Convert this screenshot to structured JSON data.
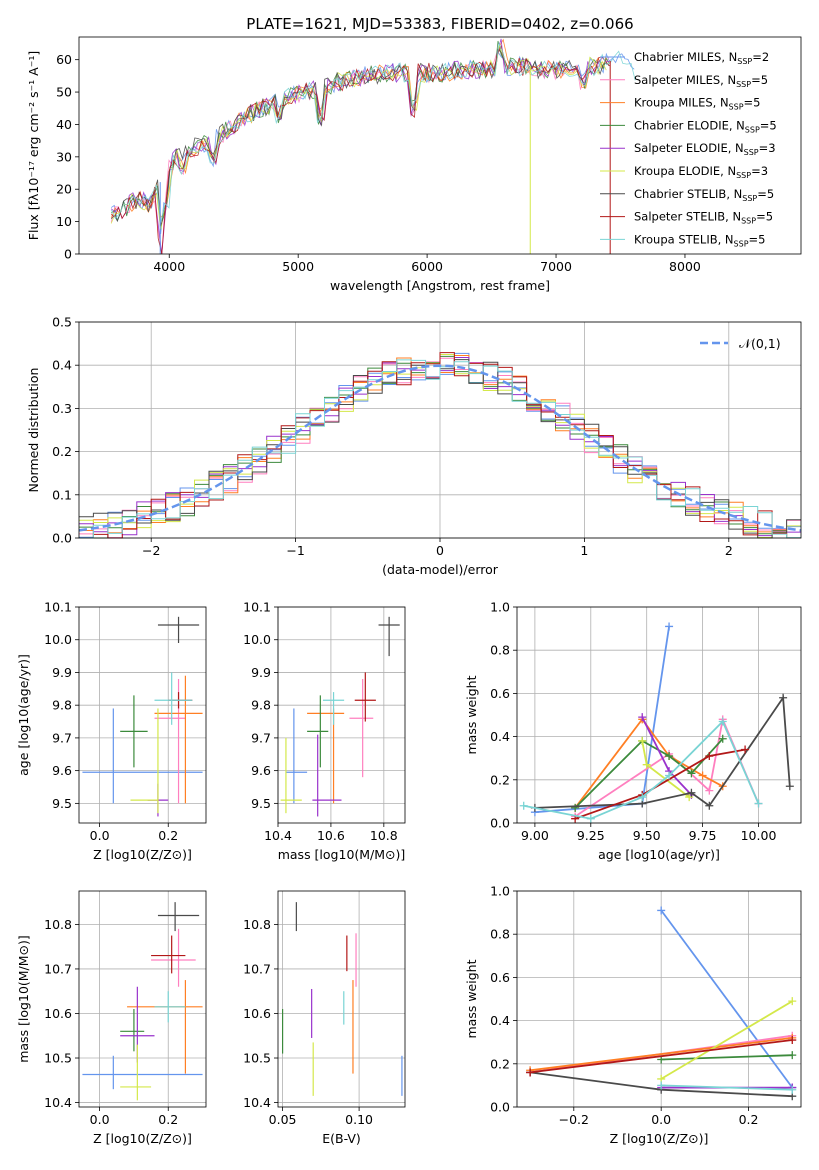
{
  "title": "PLATE=1621, MJD=53383, FIBERID=0402, z=0.066",
  "colors": [
    "#6495ed",
    "#ff7fbf",
    "#ff7f24",
    "#3c8a3c",
    "#9932cc",
    "#d4e84a",
    "#4a4a4a",
    "#b21818",
    "#79d4d4"
  ],
  "chart_data": [
    {
      "type": "line",
      "title": "PLATE=1621, MJD=53383, FIBERID=0402, z=0.066",
      "xlabel": "wavelength [Angstrom, rest frame]",
      "ylabel": "Flux [fλ10⁻¹⁷ erg cm⁻² s⁻¹ A⁻¹]",
      "xlim": [
        3300,
        8900
      ],
      "ylim": [
        0,
        67
      ],
      "xticks": [
        4000,
        5000,
        6000,
        7000,
        8000
      ],
      "yticks": [
        0,
        10,
        20,
        30,
        40,
        50,
        60
      ],
      "legend": "right",
      "series": [
        {
          "name": "Chabrier MILES, N$_{SSP}$=2"
        },
        {
          "name": "Salpeter MILES, N$_{SSP}$=5"
        },
        {
          "name": "Kroupa MILES, N$_{SSP}$=5"
        },
        {
          "name": "Chabrier ELODIE, N$_{SSP}$=5"
        },
        {
          "name": "Salpeter ELODIE, N$_{SSP}$=3"
        },
        {
          "name": "Kroupa ELODIE, N$_{SSP}$=3"
        },
        {
          "name": "Chabrier STELIB, N$_{SSP}$=5"
        },
        {
          "name": "Salpeter STELIB, N$_{SSP}$=5"
        },
        {
          "name": "Kroupa STELIB, N$_{SSP}$=5"
        }
      ],
      "spectrum_shape": [
        [
          3550,
          12
        ],
        [
          3650,
          14
        ],
        [
          3750,
          17
        ],
        [
          3850,
          15
        ],
        [
          3950,
          24
        ],
        [
          4050,
          30
        ],
        [
          4200,
          33
        ],
        [
          4350,
          35
        ],
        [
          4500,
          40
        ],
        [
          4700,
          45
        ],
        [
          4900,
          48
        ],
        [
          5050,
          50
        ],
        [
          5150,
          51
        ],
        [
          5300,
          53
        ],
        [
          5500,
          55
        ],
        [
          5700,
          56
        ],
        [
          5900,
          56
        ],
        [
          6100,
          56
        ],
        [
          6300,
          57
        ],
        [
          6500,
          57
        ],
        [
          6600,
          58
        ],
        [
          6700,
          58
        ],
        [
          6900,
          57
        ],
        [
          7100,
          57
        ],
        [
          7300,
          58
        ],
        [
          7450,
          60
        ],
        [
          7600,
          61
        ]
      ]
    },
    {
      "type": "line",
      "xlabel": "(data-model)/error",
      "ylabel": "Normed distribution",
      "xlim": [
        -2.5,
        2.5
      ],
      "ylim": [
        0,
        0.5
      ],
      "xticks": [
        -2,
        -1,
        0,
        1,
        2
      ],
      "yticks": [
        0.0,
        0.1,
        0.2,
        0.3,
        0.4,
        0.5
      ],
      "legend_label": "𝒩(0,1)",
      "gaussian": {
        "mu": 0,
        "sigma": 1
      },
      "histogram_bin_width": 0.1
    },
    {
      "type": "scatter",
      "xlabel": "Z [log10(Z/Z⊙)]",
      "ylabel": "age  [log10(age/yr)]",
      "xlim": [
        -0.06,
        0.31
      ],
      "ylim": [
        9.44,
        10.1
      ],
      "xticks": [
        0.0,
        0.2
      ],
      "yticks": [
        9.5,
        9.6,
        9.7,
        9.8,
        9.9,
        10.0,
        10.1
      ],
      "points": [
        {
          "x": 0.04,
          "y": 9.595,
          "xlo": -0.05,
          "xhi": 0.3,
          "ylo": 9.5,
          "yhi": 9.79
        },
        {
          "x": 0.23,
          "y": 9.76,
          "xlo": 0.16,
          "xhi": 0.25,
          "ylo": 9.5,
          "yhi": 9.88
        },
        {
          "x": 0.25,
          "y": 9.775,
          "xlo": 0.16,
          "xhi": 0.3,
          "ylo": 9.5,
          "yhi": 9.89
        },
        {
          "x": 0.1,
          "y": 9.72,
          "xlo": 0.06,
          "xhi": 0.14,
          "ylo": 9.61,
          "yhi": 9.83
        },
        {
          "x": 0.17,
          "y": 9.51,
          "xlo": 0.14,
          "xhi": 0.2,
          "ylo": 9.46,
          "yhi": 9.56
        },
        {
          "x": 0.17,
          "y": 9.51,
          "xlo": 0.09,
          "xhi": 0.17,
          "ylo": 9.47,
          "yhi": 9.79
        },
        {
          "x": 0.23,
          "y": 10.045,
          "xlo": 0.17,
          "xhi": 0.29,
          "ylo": 9.99,
          "yhi": 10.07
        },
        {
          "x": 0.23,
          "y": 9.815,
          "xlo": 0.2,
          "xhi": 0.27,
          "ylo": 9.79,
          "yhi": 9.84
        },
        {
          "x": 0.21,
          "y": 9.815,
          "xlo": 0.16,
          "xhi": 0.27,
          "ylo": 9.74,
          "yhi": 9.9
        }
      ]
    },
    {
      "type": "scatter",
      "xlabel": "mass [log10(M/M⊙)]",
      "xlim": [
        10.4,
        10.88
      ],
      "ylim": [
        9.44,
        10.1
      ],
      "xticks": [
        10.4,
        10.6,
        10.8
      ],
      "yticks": [
        9.5,
        9.6,
        9.7,
        9.8,
        9.9,
        10.0,
        10.1
      ],
      "points": [
        {
          "x": 10.46,
          "y": 9.595,
          "xlo": 10.43,
          "xhi": 10.51,
          "ylo": 9.5,
          "yhi": 9.79
        },
        {
          "x": 10.72,
          "y": 9.76,
          "xlo": 10.67,
          "xhi": 10.76,
          "ylo": 9.58,
          "yhi": 9.88
        },
        {
          "x": 10.61,
          "y": 9.775,
          "xlo": 10.51,
          "xhi": 10.65,
          "ylo": 9.5,
          "yhi": 9.79
        },
        {
          "x": 10.56,
          "y": 9.72,
          "xlo": 10.51,
          "xhi": 10.59,
          "ylo": 9.61,
          "yhi": 9.83
        },
        {
          "x": 10.55,
          "y": 9.51,
          "xlo": 10.53,
          "xhi": 10.64,
          "ylo": 9.46,
          "yhi": 9.71
        },
        {
          "x": 10.43,
          "y": 9.51,
          "xlo": 10.41,
          "xhi": 10.49,
          "ylo": 9.47,
          "yhi": 9.7
        },
        {
          "x": 10.82,
          "y": 10.045,
          "xlo": 10.78,
          "xhi": 10.86,
          "ylo": 9.95,
          "yhi": 10.07
        },
        {
          "x": 10.73,
          "y": 9.815,
          "xlo": 10.69,
          "xhi": 10.77,
          "ylo": 9.75,
          "yhi": 9.9
        },
        {
          "x": 10.61,
          "y": 9.815,
          "xlo": 10.57,
          "xhi": 10.65,
          "ylo": 9.74,
          "yhi": 9.84
        }
      ]
    },
    {
      "type": "line",
      "xlabel": "age  [log10(age/yr)]",
      "ylabel": "mass weight",
      "xlim": [
        8.92,
        10.19
      ],
      "ylim": [
        0.0,
        1.0
      ],
      "xticks": [
        9.0,
        9.25,
        9.5,
        9.75,
        10.0
      ],
      "yticks": [
        0.0,
        0.2,
        0.4,
        0.6,
        0.8,
        1.0
      ],
      "series": [
        {
          "x": [
            9.0,
            9.48,
            9.6
          ],
          "y": [
            0.05,
            0.09,
            0.91
          ]
        },
        {
          "x": [
            9.18,
            9.6,
            9.78,
            9.84,
            10.0
          ],
          "y": [
            0.03,
            0.32,
            0.15,
            0.48,
            0.09
          ]
        },
        {
          "x": [
            9.18,
            9.48,
            9.6,
            9.75,
            9.84
          ],
          "y": [
            0.07,
            0.48,
            0.31,
            0.22,
            0.17
          ]
        },
        {
          "x": [
            9.18,
            9.48,
            9.6,
            9.7,
            9.84
          ],
          "y": [
            0.07,
            0.38,
            0.31,
            0.23,
            0.39
          ]
        },
        {
          "x": [
            9.48,
            9.6,
            9.7
          ],
          "y": [
            0.49,
            0.24,
            0.13
          ]
        },
        {
          "x": [
            9.48,
            9.5,
            9.69
          ],
          "y": [
            0.38,
            0.27,
            0.12
          ]
        },
        {
          "x": [
            9.0,
            9.48,
            9.7,
            9.78,
            10.11,
            10.14
          ],
          "y": [
            0.07,
            0.09,
            0.14,
            0.08,
            0.58,
            0.17
          ]
        },
        {
          "x": [
            9.18,
            9.48,
            9.78,
            9.94
          ],
          "y": [
            0.02,
            0.13,
            0.31,
            0.34
          ]
        },
        {
          "x": [
            8.95,
            9.25,
            9.48,
            9.6,
            9.84,
            10.0
          ],
          "y": [
            0.08,
            0.02,
            0.12,
            0.22,
            0.47,
            0.09
          ]
        }
      ]
    },
    {
      "type": "scatter",
      "xlabel": "Z [log10(Z/Z⊙)]",
      "ylabel": "mass [log10(M/M⊙)]",
      "xlim": [
        -0.06,
        0.31
      ],
      "ylim": [
        10.39,
        10.875
      ],
      "xticks": [
        0.0,
        0.2
      ],
      "yticks": [
        10.4,
        10.5,
        10.6,
        10.7,
        10.8
      ],
      "points": [
        {
          "x": 0.04,
          "y": 10.463,
          "xlo": -0.05,
          "xhi": 0.3,
          "ylo": 10.43,
          "yhi": 10.505
        },
        {
          "x": 0.23,
          "y": 10.72,
          "xlo": 0.15,
          "xhi": 0.28,
          "ylo": 10.66,
          "yhi": 10.79
        },
        {
          "x": 0.25,
          "y": 10.615,
          "xlo": 0.08,
          "xhi": 0.3,
          "ylo": 10.465,
          "yhi": 10.675
        },
        {
          "x": 0.1,
          "y": 10.56,
          "xlo": 0.06,
          "xhi": 0.13,
          "ylo": 10.515,
          "yhi": 10.61
        },
        {
          "x": 0.11,
          "y": 10.55,
          "xlo": 0.06,
          "xhi": 0.16,
          "ylo": 10.49,
          "yhi": 10.66
        },
        {
          "x": 0.11,
          "y": 10.435,
          "xlo": 0.06,
          "xhi": 0.15,
          "ylo": 10.405,
          "yhi": 10.53
        },
        {
          "x": 0.22,
          "y": 10.82,
          "xlo": 0.17,
          "xhi": 0.29,
          "ylo": 10.785,
          "yhi": 10.85
        },
        {
          "x": 0.21,
          "y": 10.73,
          "xlo": 0.15,
          "xhi": 0.25,
          "ylo": 10.69,
          "yhi": 10.775
        },
        {
          "x": 0.2,
          "y": 10.615,
          "xlo": 0.16,
          "xhi": 0.25,
          "ylo": 10.58,
          "yhi": 10.65
        }
      ]
    },
    {
      "type": "scatter",
      "xlabel": "E(B-V)",
      "xlim": [
        0.047,
        0.13
      ],
      "ylim": [
        10.39,
        10.875
      ],
      "xticks": [
        0.05,
        0.1
      ],
      "yticks": [
        10.4,
        10.5,
        10.6,
        10.7,
        10.8
      ],
      "points": [
        {
          "x": 0.128,
          "y": 10.46,
          "ylo": 10.415,
          "yhi": 10.505
        },
        {
          "x": 0.098,
          "y": 10.72,
          "ylo": 10.66,
          "yhi": 10.78
        },
        {
          "x": 0.096,
          "y": 10.56,
          "ylo": 10.465,
          "yhi": 10.675
        },
        {
          "x": 0.05,
          "y": 10.56,
          "ylo": 10.51,
          "yhi": 10.61
        },
        {
          "x": 0.069,
          "y": 10.6,
          "ylo": 10.545,
          "yhi": 10.655
        },
        {
          "x": 0.07,
          "y": 10.475,
          "ylo": 10.415,
          "yhi": 10.535
        },
        {
          "x": 0.059,
          "y": 10.82,
          "ylo": 10.785,
          "yhi": 10.85
        },
        {
          "x": 0.092,
          "y": 10.73,
          "ylo": 10.695,
          "yhi": 10.775
        },
        {
          "x": 0.09,
          "y": 10.615,
          "ylo": 10.575,
          "yhi": 10.65
        }
      ]
    },
    {
      "type": "line",
      "xlabel": "Z [log10(Z/Z⊙)]",
      "ylabel": "mass weight",
      "xlim": [
        -0.33,
        0.32
      ],
      "ylim": [
        0.0,
        1.0
      ],
      "xticks": [
        -0.2,
        0.0,
        0.2
      ],
      "yticks": [
        0.0,
        0.2,
        0.4,
        0.6,
        0.8,
        1.0
      ],
      "series": [
        {
          "x": [
            0.0,
            0.3
          ],
          "y": [
            0.91,
            0.09
          ]
        },
        {
          "x": [
            -0.3,
            0.3
          ],
          "y": [
            0.16,
            0.33
          ]
        },
        {
          "x": [
            -0.3,
            0.3
          ],
          "y": [
            0.17,
            0.32
          ]
        },
        {
          "x": [
            0.0,
            0.3
          ],
          "y": [
            0.22,
            0.24
          ]
        },
        {
          "x": [
            0.0,
            0.3
          ],
          "y": [
            0.09,
            0.09
          ]
        },
        {
          "x": [
            0.0,
            0.3
          ],
          "y": [
            0.13,
            0.49
          ]
        },
        {
          "x": [
            -0.3,
            0.0,
            0.3
          ],
          "y": [
            0.16,
            0.08,
            0.05
          ]
        },
        {
          "x": [
            -0.3,
            0.3
          ],
          "y": [
            0.16,
            0.31
          ]
        },
        {
          "x": [
            0.0,
            0.3
          ],
          "y": [
            0.1,
            0.08
          ]
        }
      ]
    }
  ]
}
